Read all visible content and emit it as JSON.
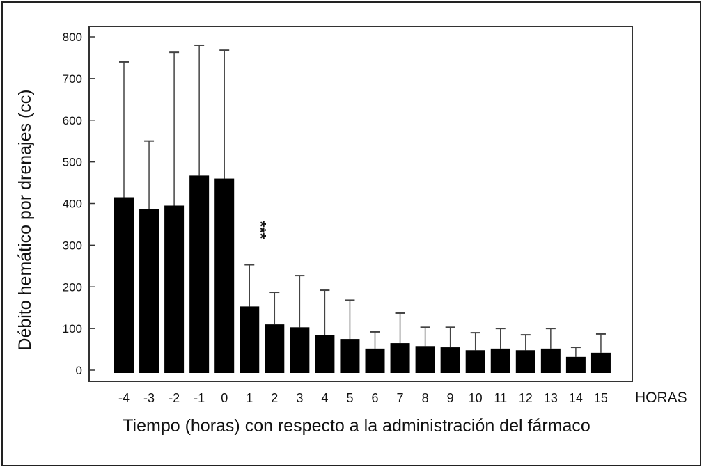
{
  "chart_data": {
    "type": "bar",
    "xlabel": "Tiempo (horas) con respecto a la administración del fármaco",
    "ylabel": "Débito hemático por drenajes (cc)",
    "x_unit_label": "HORAS",
    "categories": [
      "-4",
      "-3",
      "-2",
      "-1",
      "0",
      "1",
      "2",
      "3",
      "4",
      "5",
      "6",
      "7",
      "8",
      "9",
      "10",
      "11",
      "12",
      "13",
      "14",
      "15"
    ],
    "values": [
      415,
      386,
      395,
      467,
      460,
      153,
      110,
      103,
      85,
      75,
      52,
      65,
      58,
      55,
      48,
      52,
      48,
      52,
      32,
      42
    ],
    "error_upper": [
      740,
      550,
      763,
      780,
      768,
      253,
      187,
      227,
      192,
      168,
      92,
      137,
      103,
      103,
      90,
      100,
      85,
      100,
      55,
      87
    ],
    "ylim": [
      0,
      800
    ],
    "yticks": [
      0,
      100,
      200,
      300,
      400,
      500,
      600,
      700,
      800
    ],
    "yticklabels": [
      "0",
      "100",
      "200",
      "300",
      "400",
      "500",
      "600",
      "700",
      "800"
    ],
    "annotations": [
      {
        "category": "1",
        "text": "***"
      }
    ],
    "grid": false,
    "colors": {
      "bar": "#000000",
      "axis": "#333333",
      "error": "#444444"
    }
  }
}
